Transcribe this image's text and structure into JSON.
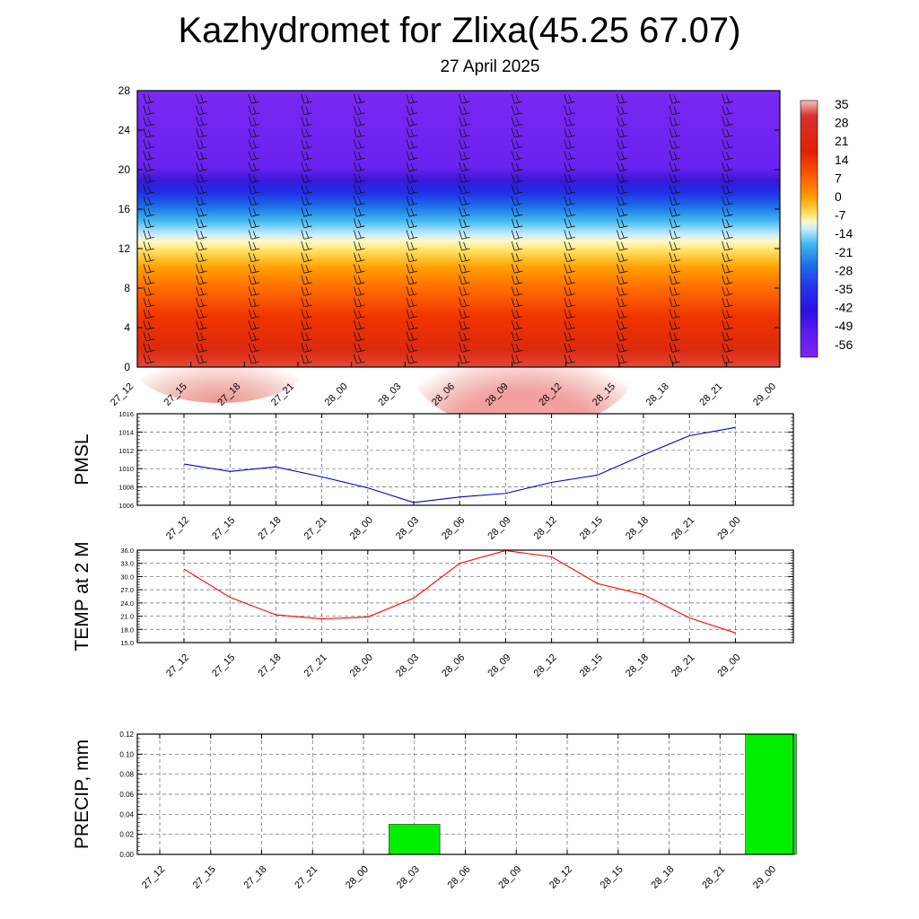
{
  "header": {
    "title": "Kazhydromet for Zlixa(45.25 67.07)",
    "subtitle": "27 April 2025"
  },
  "chart_data": [
    {
      "type": "heatmap",
      "description_type": "time-height temperature cross section with wind barbs",
      "x_tick_labels": [
        "27_12",
        "27_15",
        "27_18",
        "27_21",
        "28_00",
        "28_03",
        "28_06",
        "28_09",
        "28_12",
        "28_15",
        "28_18",
        "28_21",
        "29_00"
      ],
      "y_tick_labels": [
        "0",
        "4",
        "8",
        "12",
        "16",
        "20",
        "24",
        "28"
      ],
      "ylim": [
        0,
        28
      ],
      "colorbar_labels": [
        "35",
        "28",
        "21",
        "14",
        "7",
        "0",
        "-7",
        "-14",
        "-21",
        "-28",
        "-35",
        "-42",
        "-49",
        "-56"
      ],
      "colorbar_colors": [
        "#f4b8b8",
        "#d42020",
        "#e83000",
        "#ff5a00",
        "#ff9a00",
        "#ffd24a",
        "#fff7b0",
        "#bfe8ff",
        "#39b4f0",
        "#1f78e8",
        "#2a3ff0",
        "#2a18e8",
        "#4a14f0",
        "#7a22f0"
      ]
    },
    {
      "type": "line",
      "ylabel": "PMSL",
      "x": [
        "27_12",
        "27_15",
        "27_18",
        "27_21",
        "28_00",
        "28_03",
        "28_06",
        "28_09",
        "28_12",
        "28_15",
        "28_18",
        "28_21",
        "29_00"
      ],
      "values": [
        1010.5,
        1009.7,
        1010.2,
        1009.1,
        1007.9,
        1006.3,
        1006.9,
        1007.3,
        1008.5,
        1009.3,
        1011.5,
        1013.6,
        1014.5
      ],
      "ylim": [
        1006,
        1016
      ],
      "y_tick_labels": [
        "1006",
        "1008",
        "1010",
        "1012",
        "1014",
        "1016"
      ],
      "color": "#0000cc"
    },
    {
      "type": "line",
      "ylabel": "TEMP at 2 M",
      "x": [
        "27_12",
        "27_15",
        "27_18",
        "27_21",
        "28_00",
        "28_03",
        "28_06",
        "28_09",
        "28_12",
        "28_15",
        "28_18",
        "28_21",
        "29_00"
      ],
      "values": [
        31.7,
        25.3,
        21.3,
        20.4,
        20.8,
        25.1,
        33.0,
        35.9,
        34.5,
        28.4,
        25.9,
        20.6,
        17.2
      ],
      "ylim": [
        15,
        36
      ],
      "y_tick_labels": [
        "15.0",
        "18.0",
        "21.0",
        "24.0",
        "27.0",
        "30.0",
        "33.0",
        "36.0"
      ],
      "color": "#ff0000"
    },
    {
      "type": "bar",
      "ylabel": "PRECIP, mm",
      "categories": [
        "27_12",
        "27_15",
        "27_18",
        "27_21",
        "28_00",
        "28_03",
        "28_06",
        "28_09",
        "28_12",
        "28_15",
        "28_18",
        "28_21",
        "29_00"
      ],
      "values": [
        0,
        0,
        0,
        0,
        0,
        0.03,
        0,
        0,
        0,
        0,
        0,
        0,
        0.12
      ],
      "ylim": [
        0,
        0.12
      ],
      "y_tick_labels": [
        "0.00",
        "0.02",
        "0.04",
        "0.06",
        "0.08",
        "0.10",
        "0.12"
      ],
      "color": "#00ee00"
    }
  ]
}
